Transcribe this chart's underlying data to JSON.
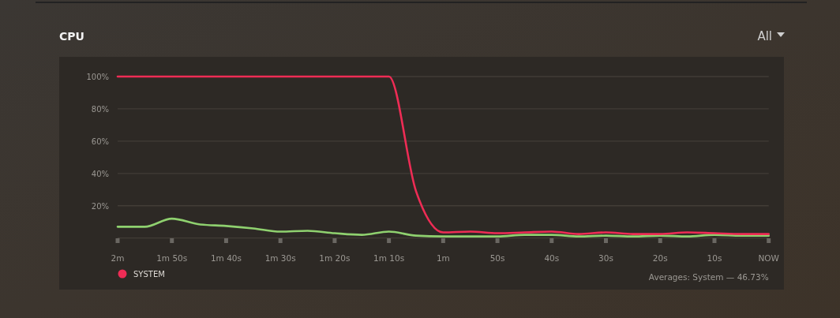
{
  "chart_data": {
    "type": "line",
    "title": "CPU",
    "categories": [
      "2m",
      null,
      "1m 50s",
      null,
      "1m 40s",
      null,
      "1m 30s",
      null,
      "1m 20s",
      null,
      "1m 10s",
      null,
      "1m",
      null,
      "50s",
      null,
      "40s",
      null,
      "30s",
      null,
      "20s",
      null,
      "10s",
      null,
      "NOW"
    ],
    "series": [
      {
        "color": "#8fd16f",
        "values": [
          7,
          7,
          12,
          8.5,
          7.5,
          6,
          4,
          4.5,
          3,
          2,
          4,
          1.5,
          1,
          1,
          1,
          2,
          2,
          1,
          1.5,
          1,
          1.5,
          1,
          2,
          1.5,
          1.5
        ]
      },
      {
        "name": "SYSTEM",
        "color": "#ee2c55",
        "values": [
          100,
          100,
          100,
          100,
          100,
          100,
          100,
          100,
          100,
          100,
          100,
          29,
          3.5,
          4,
          3,
          3.5,
          4,
          2.5,
          3.5,
          2.5,
          2.5,
          3.5,
          3,
          2.5,
          2.5
        ]
      }
    ],
    "ylim": [
      0,
      100
    ],
    "yticks": [
      {
        "value": 0,
        "label": null
      },
      {
        "value": 20,
        "label": "20%"
      },
      {
        "value": 40,
        "label": "40%"
      },
      {
        "value": 60,
        "label": "60%"
      },
      {
        "value": 80,
        "label": "80%"
      },
      {
        "value": 100,
        "label": "100%"
      }
    ],
    "grid": "y",
    "legend": "bottom left",
    "marker": "none",
    "line_style": "solid",
    "annotations": [
      "All",
      "Averages: System — 46.73%"
    ]
  }
}
